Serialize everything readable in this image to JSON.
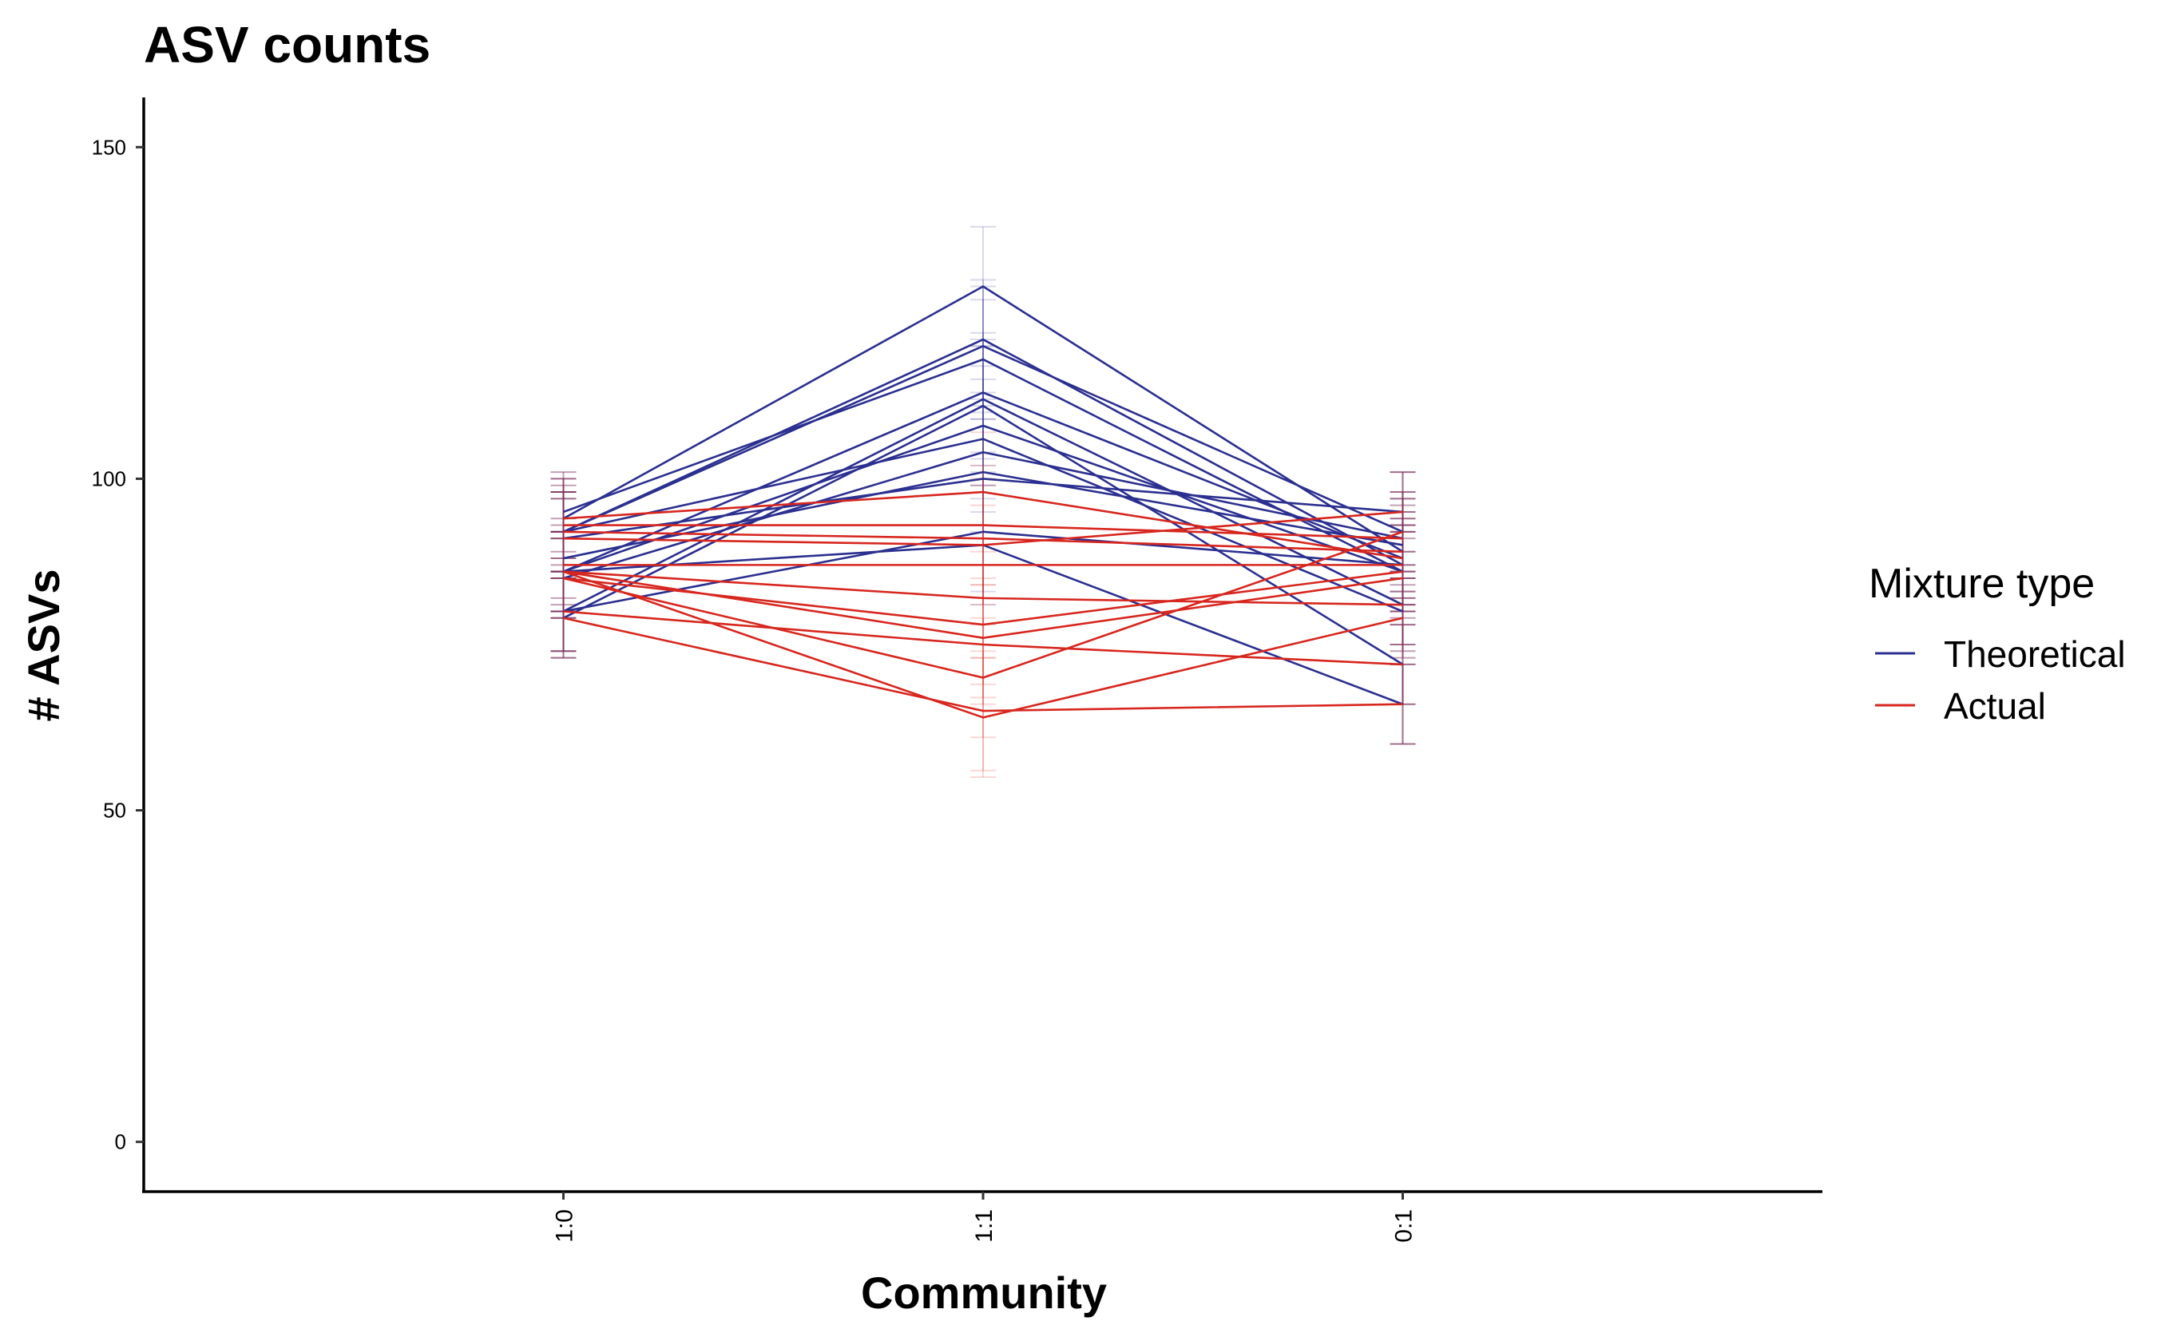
{
  "chart_data": {
    "type": "line",
    "title": "ASV counts",
    "xlabel": "Community",
    "ylabel": "# ASVs",
    "categories": [
      "1:0",
      "1:1",
      "0:1"
    ],
    "yticks": [
      0,
      50,
      100,
      150
    ],
    "ylim": [
      -7.5,
      157.5
    ],
    "grid": false,
    "legend": {
      "title": "Mixture type",
      "placement": "right",
      "entries": [
        {
          "label": "Theoretical",
          "color": "#2b2f8f"
        },
        {
          "label": "Actual",
          "color": "#d7261e"
        }
      ]
    },
    "series": [
      {
        "type": "Theoretical",
        "color": "#2b2f8f",
        "values": [
          94,
          129,
          89
        ]
      },
      {
        "type": "Theoretical",
        "color": "#2b2f8f",
        "values": [
          92,
          121,
          87
        ]
      },
      {
        "type": "Theoretical",
        "color": "#2b2f8f",
        "values": [
          92,
          120,
          92
        ]
      },
      {
        "type": "Theoretical",
        "color": "#2b2f8f",
        "values": [
          95,
          118,
          86
        ]
      },
      {
        "type": "Theoretical",
        "color": "#2b2f8f",
        "values": [
          86,
          113,
          88
        ]
      },
      {
        "type": "Theoretical",
        "color": "#2b2f8f",
        "values": [
          80,
          112,
          81
        ]
      },
      {
        "type": "Theoretical",
        "color": "#2b2f8f",
        "values": [
          79,
          111,
          72
        ]
      },
      {
        "type": "Theoretical",
        "color": "#2b2f8f",
        "values": [
          86,
          108,
          86
        ]
      },
      {
        "type": "Theoretical",
        "color": "#2b2f8f",
        "values": [
          92,
          106,
          80
        ]
      },
      {
        "type": "Theoretical",
        "color": "#2b2f8f",
        "values": [
          85,
          104,
          91
        ]
      },
      {
        "type": "Theoretical",
        "color": "#2b2f8f",
        "values": [
          88,
          101,
          90
        ]
      },
      {
        "type": "Theoretical",
        "color": "#2b2f8f",
        "values": [
          91,
          100,
          95
        ]
      },
      {
        "type": "Theoretical",
        "color": "#2b2f8f",
        "values": [
          80,
          92,
          87
        ]
      },
      {
        "type": "Theoretical",
        "color": "#2b2f8f",
        "values": [
          86,
          90,
          66
        ]
      },
      {
        "type": "Actual",
        "color": "#d7261e",
        "values": [
          94,
          98,
          88
        ]
      },
      {
        "type": "Actual",
        "color": "#d7261e",
        "values": [
          93,
          93,
          91
        ]
      },
      {
        "type": "Actual",
        "color": "#d7261e",
        "values": [
          92,
          91,
          89
        ]
      },
      {
        "type": "Actual",
        "color": "#d7261e",
        "values": [
          91,
          90,
          95
        ]
      },
      {
        "type": "Actual",
        "color": "#d7261e",
        "values": [
          87,
          87,
          87
        ]
      },
      {
        "type": "Actual",
        "color": "#d7261e",
        "values": [
          86,
          82,
          81
        ]
      },
      {
        "type": "Actual",
        "color": "#d7261e",
        "values": [
          85,
          78,
          86
        ]
      },
      {
        "type": "Actual",
        "color": "#d7261e",
        "values": [
          86,
          76,
          85
        ]
      },
      {
        "type": "Actual",
        "color": "#d7261e",
        "values": [
          85,
          70,
          92
        ]
      },
      {
        "type": "Actual",
        "color": "#d7261e",
        "values": [
          80,
          75,
          72
        ]
      },
      {
        "type": "Actual",
        "color": "#d7261e",
        "values": [
          79,
          65,
          66
        ]
      },
      {
        "type": "Actual",
        "color": "#d7261e",
        "values": [
          86,
          64,
          79
        ]
      }
    ]
  }
}
